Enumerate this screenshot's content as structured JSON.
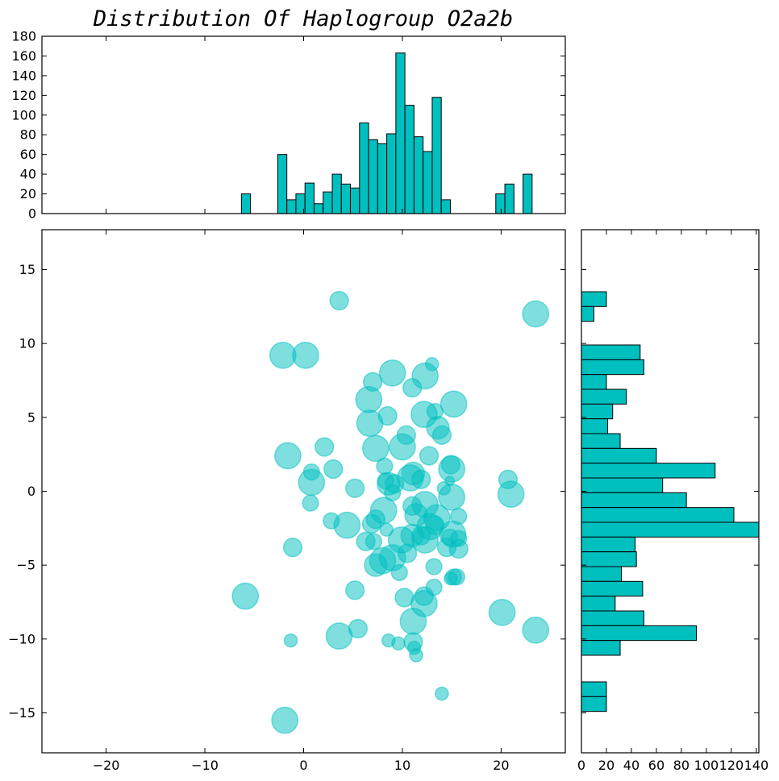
{
  "chart_data": {
    "type": "scatter",
    "title": "Distribution Of Haplogroup O2a2b",
    "color": "#00bfbf",
    "scatter_alpha": 0.5,
    "xlim": [
      -26.5,
      26.5
    ],
    "ylim": [
      -17.7,
      17.7
    ],
    "x_ticks": [
      -20,
      -10,
      0,
      10,
      20
    ],
    "x_tick_labels": [
      "−20",
      "−10",
      "0",
      "10",
      "20"
    ],
    "y_ticks": [
      -15,
      -10,
      -5,
      0,
      5,
      10,
      15
    ],
    "y_tick_labels": [
      "−15",
      "−10",
      "−5",
      "0",
      "5",
      "10",
      "15"
    ],
    "points": [
      {
        "x": 3.6,
        "y": 12.9,
        "s": 20
      },
      {
        "x": 23.5,
        "y": 12.0,
        "s": 40
      },
      {
        "x": -2.1,
        "y": 9.2,
        "s": 40
      },
      {
        "x": 0.2,
        "y": 9.2,
        "s": 40
      },
      {
        "x": 13.0,
        "y": 8.6,
        "s": 10
      },
      {
        "x": 9.0,
        "y": 8.0,
        "s": 40
      },
      {
        "x": 12.3,
        "y": 7.8,
        "s": 40
      },
      {
        "x": 7.0,
        "y": 7.4,
        "s": 20
      },
      {
        "x": 11.0,
        "y": 7.0,
        "s": 20
      },
      {
        "x": 6.6,
        "y": 6.2,
        "s": 40
      },
      {
        "x": 15.2,
        "y": 5.9,
        "s": 40
      },
      {
        "x": 13.3,
        "y": 5.4,
        "s": 15
      },
      {
        "x": 12.2,
        "y": 5.2,
        "s": 40
      },
      {
        "x": 8.5,
        "y": 5.1,
        "s": 20
      },
      {
        "x": 6.7,
        "y": 4.6,
        "s": 40
      },
      {
        "x": 13.6,
        "y": 4.3,
        "s": 30
      },
      {
        "x": 14.0,
        "y": 3.8,
        "s": 20
      },
      {
        "x": 10.4,
        "y": 3.8,
        "s": 20
      },
      {
        "x": 7.3,
        "y": 2.9,
        "s": 40
      },
      {
        "x": 10.0,
        "y": 3.0,
        "s": 40
      },
      {
        "x": 2.1,
        "y": 3.0,
        "s": 20
      },
      {
        "x": -1.6,
        "y": 2.4,
        "s": 40
      },
      {
        "x": 12.7,
        "y": 2.4,
        "s": 20
      },
      {
        "x": 8.2,
        "y": 1.7,
        "s": 15
      },
      {
        "x": 3.0,
        "y": 1.5,
        "s": 20
      },
      {
        "x": 0.8,
        "y": 1.3,
        "s": 15
      },
      {
        "x": 14.9,
        "y": 1.8,
        "s": 20
      },
      {
        "x": 15.0,
        "y": 1.5,
        "s": 40
      },
      {
        "x": 11.1,
        "y": 1.2,
        "s": 30
      },
      {
        "x": 10.8,
        "y": 0.9,
        "s": 40
      },
      {
        "x": 11.9,
        "y": 0.8,
        "s": 20
      },
      {
        "x": 20.7,
        "y": 0.8,
        "s": 20
      },
      {
        "x": 14.8,
        "y": 0.7,
        "s": 5
      },
      {
        "x": 0.8,
        "y": 0.6,
        "s": 40
      },
      {
        "x": 8.3,
        "y": 0.7,
        "s": 15
      },
      {
        "x": 8.6,
        "y": 0.5,
        "s": 30
      },
      {
        "x": 9.2,
        "y": 0.5,
        "s": 20
      },
      {
        "x": 5.2,
        "y": 0.2,
        "s": 20
      },
      {
        "x": 14.2,
        "y": 0.2,
        "s": 10
      },
      {
        "x": 9.0,
        "y": -0.1,
        "s": 15
      },
      {
        "x": 21.0,
        "y": -0.2,
        "s": 40
      },
      {
        "x": 15.0,
        "y": -0.4,
        "s": 40
      },
      {
        "x": 0.7,
        "y": -0.8,
        "s": 15
      },
      {
        "x": 12.3,
        "y": -0.9,
        "s": 40
      },
      {
        "x": 8.1,
        "y": -1.3,
        "s": 40
      },
      {
        "x": 11.0,
        "y": -1.0,
        "s": 20
      },
      {
        "x": 11.4,
        "y": -1.6,
        "s": 30
      },
      {
        "x": 13.5,
        "y": -1.8,
        "s": 40
      },
      {
        "x": 15.7,
        "y": -1.7,
        "s": 15
      },
      {
        "x": 7.3,
        "y": -1.9,
        "s": 20
      },
      {
        "x": 2.8,
        "y": -2.0,
        "s": 15
      },
      {
        "x": 6.9,
        "y": -2.2,
        "s": 20
      },
      {
        "x": 4.4,
        "y": -2.3,
        "s": 40
      },
      {
        "x": 12.8,
        "y": -2.4,
        "s": 40
      },
      {
        "x": 13.3,
        "y": -2.3,
        "s": 20
      },
      {
        "x": 8.4,
        "y": -2.6,
        "s": 10
      },
      {
        "x": 15.1,
        "y": -2.9,
        "s": 40
      },
      {
        "x": 11.0,
        "y": -3.0,
        "s": 30
      },
      {
        "x": 11.9,
        "y": -3.0,
        "s": 20
      },
      {
        "x": 14.8,
        "y": -3.1,
        "s": 15
      },
      {
        "x": 15.7,
        "y": -3.2,
        "s": 15
      },
      {
        "x": 9.9,
        "y": -3.3,
        "s": 40
      },
      {
        "x": 12.3,
        "y": -3.3,
        "s": 40
      },
      {
        "x": 6.3,
        "y": -3.4,
        "s": 20
      },
      {
        "x": 7.1,
        "y": -3.4,
        "s": 15
      },
      {
        "x": -1.1,
        "y": -3.8,
        "s": 20
      },
      {
        "x": 14.5,
        "y": -3.8,
        "s": 20
      },
      {
        "x": 15.7,
        "y": -3.9,
        "s": 20
      },
      {
        "x": 10.5,
        "y": -4.2,
        "s": 20
      },
      {
        "x": 9.0,
        "y": -4.5,
        "s": 40
      },
      {
        "x": 8.0,
        "y": -4.7,
        "s": 40
      },
      {
        "x": 7.3,
        "y": -5.0,
        "s": 30
      },
      {
        "x": 13.2,
        "y": -5.1,
        "s": 15
      },
      {
        "x": 9.7,
        "y": -5.5,
        "s": 15
      },
      {
        "x": 15.2,
        "y": -5.8,
        "s": 15
      },
      {
        "x": 14.9,
        "y": -5.9,
        "s": 10
      },
      {
        "x": 15.5,
        "y": -5.8,
        "s": 15
      },
      {
        "x": 13.2,
        "y": -6.5,
        "s": 15
      },
      {
        "x": 5.2,
        "y": -6.7,
        "s": 20
      },
      {
        "x": -5.9,
        "y": -7.1,
        "s": 40
      },
      {
        "x": 10.2,
        "y": -7.2,
        "s": 20
      },
      {
        "x": 12.2,
        "y": -7.1,
        "s": 20
      },
      {
        "x": 12.2,
        "y": -7.6,
        "s": 40
      },
      {
        "x": 20.1,
        "y": -8.2,
        "s": 40
      },
      {
        "x": 11.1,
        "y": -8.8,
        "s": 40
      },
      {
        "x": 5.5,
        "y": -9.3,
        "s": 20
      },
      {
        "x": 23.5,
        "y": -9.4,
        "s": 40
      },
      {
        "x": 3.6,
        "y": -9.8,
        "s": 40
      },
      {
        "x": -1.3,
        "y": -10.1,
        "s": 10
      },
      {
        "x": 8.6,
        "y": -10.1,
        "s": 10
      },
      {
        "x": 11.1,
        "y": -10.2,
        "s": 20
      },
      {
        "x": 9.6,
        "y": -10.3,
        "s": 10
      },
      {
        "x": 11.2,
        "y": -10.6,
        "s": 10
      },
      {
        "x": 11.4,
        "y": -11.1,
        "s": 10
      },
      {
        "x": 14.0,
        "y": -13.7,
        "s": 10
      },
      {
        "x": -1.9,
        "y": -15.5,
        "s": 40
      }
    ],
    "top_histogram": {
      "bin_width": 0.92,
      "ylim": [
        0,
        180
      ],
      "y_ticks": [
        0,
        20,
        40,
        60,
        80,
        100,
        120,
        140,
        160,
        180
      ],
      "bins": [
        {
          "x": -6.3,
          "count": 20
        },
        {
          "x": -2.62,
          "count": 60
        },
        {
          "x": -1.7,
          "count": 14
        },
        {
          "x": -0.78,
          "count": 20
        },
        {
          "x": 0.14,
          "count": 31
        },
        {
          "x": 1.06,
          "count": 10
        },
        {
          "x": 1.98,
          "count": 22
        },
        {
          "x": 2.9,
          "count": 40
        },
        {
          "x": 3.82,
          "count": 30
        },
        {
          "x": 4.74,
          "count": 26
        },
        {
          "x": 5.66,
          "count": 92
        },
        {
          "x": 6.58,
          "count": 75
        },
        {
          "x": 7.5,
          "count": 71
        },
        {
          "x": 8.42,
          "count": 81
        },
        {
          "x": 9.34,
          "count": 163
        },
        {
          "x": 10.26,
          "count": 110
        },
        {
          "x": 11.18,
          "count": 78
        },
        {
          "x": 12.1,
          "count": 63
        },
        {
          "x": 13.02,
          "count": 118
        },
        {
          "x": 13.94,
          "count": 14
        },
        {
          "x": 19.46,
          "count": 20
        },
        {
          "x": 20.38,
          "count": 30
        },
        {
          "x": 22.22,
          "count": 40
        }
      ]
    },
    "right_histogram": {
      "bin_height": 1.0,
      "xlim": [
        0,
        142
      ],
      "x_ticks": [
        0,
        20,
        40,
        60,
        80,
        100,
        120,
        140
      ],
      "bins": [
        {
          "y": 12.5,
          "count": 20
        },
        {
          "y": 11.5,
          "count": 10
        },
        {
          "y": 8.9,
          "count": 47
        },
        {
          "y": 7.9,
          "count": 50
        },
        {
          "y": 6.9,
          "count": 20
        },
        {
          "y": 5.9,
          "count": 36
        },
        {
          "y": 4.9,
          "count": 25
        },
        {
          "y": 3.9,
          "count": 21
        },
        {
          "y": 2.9,
          "count": 31
        },
        {
          "y": 1.9,
          "count": 60
        },
        {
          "y": 0.9,
          "count": 107
        },
        {
          "y": -0.1,
          "count": 65
        },
        {
          "y": -1.1,
          "count": 84
        },
        {
          "y": -2.1,
          "count": 122
        },
        {
          "y": -3.1,
          "count": 142
        },
        {
          "y": -4.1,
          "count": 43
        },
        {
          "y": -5.1,
          "count": 44
        },
        {
          "y": -6.1,
          "count": 32
        },
        {
          "y": -7.1,
          "count": 49
        },
        {
          "y": -8.1,
          "count": 27
        },
        {
          "y": -9.1,
          "count": 50
        },
        {
          "y": -10.1,
          "count": 92
        },
        {
          "y": -11.1,
          "count": 31
        },
        {
          "y": -13.9,
          "count": 20
        },
        {
          "y": -14.9,
          "count": 20
        }
      ]
    }
  }
}
